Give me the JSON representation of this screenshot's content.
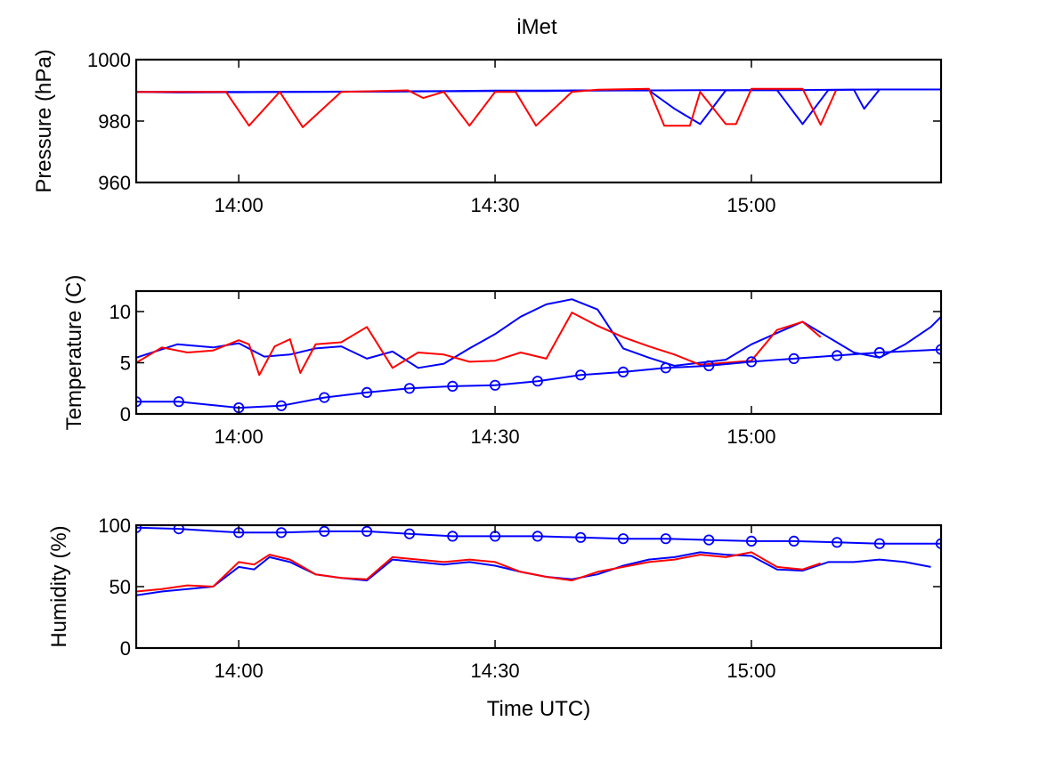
{
  "title": "iMet",
  "colors": {
    "instrument": "#0000ff",
    "reference": "#ff0000",
    "axes": "#000000"
  },
  "chart_data": [
    {
      "type": "line",
      "ylabel": "Pressure (hPa)",
      "xlabel": "",
      "xlim": [
        13.8,
        15.37
      ],
      "ylim": [
        960,
        1000
      ],
      "yticks": [
        960,
        980,
        1000
      ],
      "xticks": [
        {
          "x": 14.0,
          "label": "14:00"
        },
        {
          "x": 14.5,
          "label": "14:30"
        },
        {
          "x": 15.0,
          "label": "15:00"
        }
      ],
      "series": [
        {
          "color": "#0000ff",
          "x": [
            13.8,
            13.883,
            14.0,
            14.083,
            14.167,
            14.25,
            14.333,
            14.417,
            14.5,
            14.583,
            14.667,
            14.75,
            14.833,
            14.917,
            15.0,
            15.083,
            15.167,
            15.25,
            15.37
          ],
          "y": [
            989.5,
            989.3,
            989.4,
            989.5,
            989.5,
            989.6,
            989.7,
            989.8,
            989.9,
            989.9,
            990.0,
            990.0,
            990.0,
            990.1,
            990.1,
            990.1,
            990.2,
            990.3,
            990.3
          ]
        },
        {
          "color": "#0000ff",
          "x": [
            13.8,
            13.9,
            14.0,
            14.1,
            14.2,
            14.3,
            14.4,
            14.5,
            14.6,
            14.7,
            14.8,
            14.85,
            14.9,
            14.95,
            15.0,
            15.05,
            15.1,
            15.15,
            15.2,
            15.22,
            15.25,
            15.3,
            15.35
          ],
          "y": [
            989.5,
            989.5,
            989.5,
            989.5,
            989.6,
            989.6,
            989.7,
            989.8,
            989.8,
            989.9,
            990.0,
            984.0,
            979.0,
            990.0,
            990.1,
            990.1,
            979.0,
            990.1,
            990.2,
            984.0,
            990.3,
            990.3,
            990.3
          ]
        },
        {
          "color": "#ff0000",
          "x": [
            13.8,
            13.9,
            13.975,
            14.02,
            14.08,
            14.125,
            14.2,
            14.33,
            14.36,
            14.4,
            14.45,
            14.5,
            14.54,
            14.58,
            14.65,
            14.7,
            14.8,
            14.83,
            14.88,
            14.9,
            14.95,
            14.97,
            15.0,
            15.02,
            15.1,
            15.135,
            15.165
          ],
          "y": [
            989.5,
            989.5,
            989.5,
            978.5,
            989.5,
            978.0,
            989.5,
            990.0,
            987.5,
            989.5,
            978.5,
            989.5,
            989.5,
            978.5,
            989.5,
            990.2,
            990.5,
            978.5,
            978.5,
            989.5,
            979.0,
            979.0,
            990.5,
            990.5,
            990.5,
            978.8,
            990.0
          ]
        }
      ]
    },
    {
      "type": "line",
      "ylabel": "Temperature (C)",
      "xlabel": "",
      "xlim": [
        13.8,
        15.37
      ],
      "ylim": [
        0,
        12
      ],
      "yticks": [
        0,
        5,
        10
      ],
      "xticks": [
        {
          "x": 14.0,
          "label": "14:00"
        },
        {
          "x": 14.5,
          "label": "14:30"
        },
        {
          "x": 15.0,
          "label": "15:00"
        }
      ],
      "series": [
        {
          "color": "#0000ff",
          "x": [
            13.8,
            13.88,
            13.95,
            14.0,
            14.05,
            14.1,
            14.15,
            14.2,
            14.25,
            14.3,
            14.35,
            14.4,
            14.45,
            14.5,
            14.55,
            14.6,
            14.65,
            14.7,
            14.75,
            14.8,
            14.85,
            14.9,
            14.95,
            15.0,
            15.05,
            15.1,
            15.15,
            15.2,
            15.25,
            15.3,
            15.35,
            15.37
          ],
          "y": [
            5.5,
            6.8,
            6.5,
            6.9,
            5.6,
            5.8,
            6.4,
            6.6,
            5.4,
            6.1,
            4.5,
            4.9,
            6.4,
            7.8,
            9.5,
            10.7,
            11.2,
            10.2,
            6.4,
            5.5,
            4.7,
            5.0,
            5.3,
            6.8,
            7.9,
            9.0,
            7.5,
            6.0,
            5.5,
            6.8,
            8.5,
            9.5
          ]
        },
        {
          "color": "#ff0000",
          "x": [
            13.8,
            13.85,
            13.9,
            13.95,
            14.0,
            14.02,
            14.04,
            14.07,
            14.1,
            14.12,
            14.15,
            14.2,
            14.25,
            14.3,
            14.35,
            14.4,
            14.45,
            14.5,
            14.55,
            14.6,
            14.65,
            14.7,
            14.75,
            14.8,
            14.85,
            14.9,
            14.95,
            15.0,
            15.05,
            15.1,
            15.135
          ],
          "y": [
            5.0,
            6.5,
            6.0,
            6.2,
            7.2,
            6.8,
            3.8,
            6.6,
            7.3,
            4.0,
            6.8,
            7.0,
            8.5,
            4.5,
            6.0,
            5.8,
            5.1,
            5.2,
            6.0,
            5.4,
            9.9,
            8.6,
            7.5,
            6.6,
            5.8,
            4.8,
            5.0,
            5.2,
            8.2,
            9.0,
            7.5
          ]
        },
        {
          "color": "#0000ff",
          "x": [
            13.8,
            13.883,
            14.0,
            14.083,
            14.167,
            14.25,
            14.333,
            14.417,
            14.5,
            14.583,
            14.667,
            14.75,
            14.833,
            14.917,
            15.0,
            15.083,
            15.167,
            15.25,
            15.37
          ],
          "y": [
            1.2,
            1.2,
            0.6,
            0.8,
            1.6,
            2.1,
            2.5,
            2.7,
            2.8,
            3.2,
            3.8,
            4.1,
            4.5,
            4.7,
            5.1,
            5.4,
            5.7,
            6.0,
            6.3
          ],
          "markers": true
        }
      ]
    },
    {
      "type": "line",
      "ylabel": "Humidity (%)",
      "xlabel": "Time UTC)",
      "xlim": [
        13.8,
        15.37
      ],
      "ylim": [
        0,
        100
      ],
      "yticks": [
        0,
        50,
        100
      ],
      "xticks": [
        {
          "x": 14.0,
          "label": "14:00"
        },
        {
          "x": 14.5,
          "label": "14:30"
        },
        {
          "x": 15.0,
          "label": "15:00"
        }
      ],
      "series": [
        {
          "color": "#0000ff",
          "x": [
            13.8,
            13.85,
            13.9,
            13.95,
            14.0,
            14.03,
            14.06,
            14.1,
            14.15,
            14.2,
            14.25,
            14.3,
            14.35,
            14.4,
            14.45,
            14.5,
            14.55,
            14.6,
            14.65,
            14.7,
            14.75,
            14.8,
            14.85,
            14.9,
            14.95,
            15.0,
            15.05,
            15.1,
            15.15,
            15.2,
            15.25,
            15.3,
            15.35
          ],
          "y": [
            43,
            46,
            48,
            50,
            66,
            64,
            74,
            70,
            60,
            57,
            55,
            72,
            70,
            68,
            70,
            67,
            62,
            58,
            56,
            60,
            67,
            72,
            74,
            78,
            76,
            75,
            64,
            63,
            70,
            70,
            72,
            70,
            66
          ]
        },
        {
          "color": "#ff0000",
          "x": [
            13.8,
            13.85,
            13.9,
            13.95,
            14.0,
            14.03,
            14.06,
            14.1,
            14.15,
            14.2,
            14.25,
            14.3,
            14.35,
            14.4,
            14.45,
            14.5,
            14.55,
            14.6,
            14.65,
            14.7,
            14.75,
            14.8,
            14.85,
            14.9,
            14.95,
            15.0,
            15.05,
            15.1,
            15.135
          ],
          "y": [
            46,
            48,
            51,
            50,
            70,
            68,
            76,
            72,
            60,
            57,
            56,
            74,
            72,
            70,
            72,
            70,
            62,
            58,
            55,
            62,
            66,
            70,
            72,
            76,
            74,
            78,
            66,
            64,
            69
          ]
        },
        {
          "color": "#0000ff",
          "x": [
            13.8,
            13.883,
            14.0,
            14.083,
            14.167,
            14.25,
            14.333,
            14.417,
            14.5,
            14.583,
            14.667,
            14.75,
            14.833,
            14.917,
            15.0,
            15.083,
            15.167,
            15.25,
            15.37
          ],
          "y": [
            98,
            97,
            94,
            94,
            95,
            95,
            93,
            91,
            91,
            91,
            90,
            89,
            89,
            88,
            87,
            87,
            86,
            85,
            85
          ],
          "markers": true
        }
      ]
    }
  ]
}
